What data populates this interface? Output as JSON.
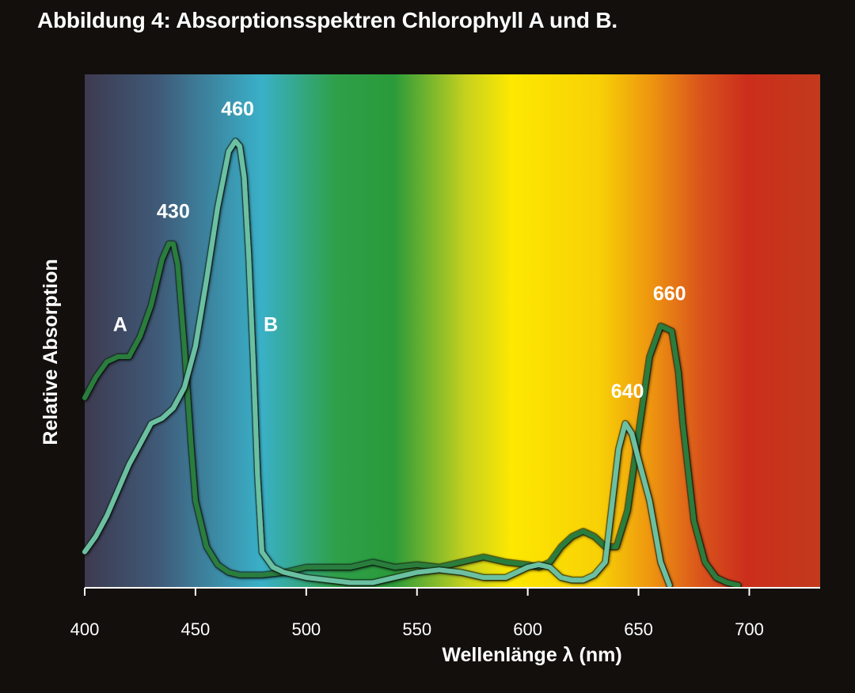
{
  "figure": {
    "title": "Abbildung 4: Absorptionsspektren Chlorophyll A und B."
  },
  "chart_data": {
    "type": "line",
    "xlabel": "Wellenlänge λ (nm)",
    "ylabel": "Relative Absorption",
    "xlim": [
      400,
      732
    ],
    "ylim": [
      0,
      1
    ],
    "x_ticks": [
      400,
      450,
      500,
      550,
      600,
      650,
      700
    ],
    "x_tick_labels": [
      "400",
      "450",
      "500",
      "550",
      "600",
      "650",
      "700"
    ],
    "y_ticks": [],
    "grid": false,
    "background": "visible light spectrum gradient from violet (400 nm) to red (730 nm)",
    "spectrum_colors": [
      "#3e3a50",
      "#3f5a78",
      "#3ab0c8",
      "#2fa04a",
      "#2a9a3a",
      "#c8d21e",
      "#fde801",
      "#f8d006",
      "#ee9510",
      "#d9521c",
      "#cb2e1c",
      "#c33a1d"
    ],
    "series": [
      {
        "name": "A",
        "color": "#2a7d3c",
        "x": [
          400,
          405,
          410,
          415,
          420,
          425,
          430,
          435,
          438,
          440,
          442,
          445,
          448,
          450,
          455,
          460,
          465,
          470,
          480,
          490,
          500,
          510,
          520,
          530,
          540,
          550,
          560,
          570,
          580,
          590,
          600,
          605,
          610,
          615,
          620,
          625,
          630,
          635,
          640,
          645,
          650,
          655,
          660,
          665,
          668,
          670,
          675,
          680,
          685,
          690,
          695
        ],
        "y": [
          0.37,
          0.41,
          0.44,
          0.45,
          0.45,
          0.49,
          0.55,
          0.64,
          0.67,
          0.67,
          0.63,
          0.47,
          0.28,
          0.17,
          0.08,
          0.045,
          0.03,
          0.025,
          0.025,
          0.03,
          0.04,
          0.04,
          0.04,
          0.05,
          0.04,
          0.045,
          0.04,
          0.05,
          0.06,
          0.05,
          0.045,
          0.04,
          0.05,
          0.08,
          0.1,
          0.11,
          0.1,
          0.08,
          0.08,
          0.15,
          0.3,
          0.45,
          0.51,
          0.5,
          0.42,
          0.32,
          0.13,
          0.05,
          0.02,
          0.01,
          0.005
        ]
      },
      {
        "name": "B",
        "color": "#6cc0a2",
        "x": [
          400,
          405,
          410,
          415,
          420,
          425,
          430,
          435,
          440,
          445,
          450,
          455,
          460,
          465,
          468,
          470,
          472,
          474,
          476,
          478,
          480,
          485,
          490,
          500,
          510,
          520,
          530,
          540,
          550,
          560,
          570,
          580,
          590,
          600,
          605,
          610,
          615,
          620,
          625,
          630,
          635,
          638,
          641,
          644,
          647,
          650,
          655,
          660,
          664
        ],
        "y": [
          0.07,
          0.1,
          0.14,
          0.19,
          0.24,
          0.28,
          0.32,
          0.33,
          0.35,
          0.39,
          0.47,
          0.6,
          0.74,
          0.85,
          0.87,
          0.86,
          0.8,
          0.65,
          0.45,
          0.22,
          0.07,
          0.04,
          0.03,
          0.02,
          0.015,
          0.01,
          0.01,
          0.02,
          0.03,
          0.035,
          0.03,
          0.02,
          0.02,
          0.04,
          0.045,
          0.04,
          0.02,
          0.015,
          0.015,
          0.025,
          0.05,
          0.16,
          0.27,
          0.32,
          0.3,
          0.25,
          0.17,
          0.05,
          0.005
        ]
      }
    ],
    "annotations": [
      {
        "text": "430",
        "x": 440,
        "y": 0.72
      },
      {
        "text": "460",
        "x": 469,
        "y": 0.92
      },
      {
        "text": "660",
        "x": 664,
        "y": 0.56
      },
      {
        "text": "640",
        "x": 645,
        "y": 0.37
      },
      {
        "text": "A",
        "x": 416,
        "y": 0.5
      },
      {
        "text": "B",
        "x": 484,
        "y": 0.5
      }
    ]
  }
}
